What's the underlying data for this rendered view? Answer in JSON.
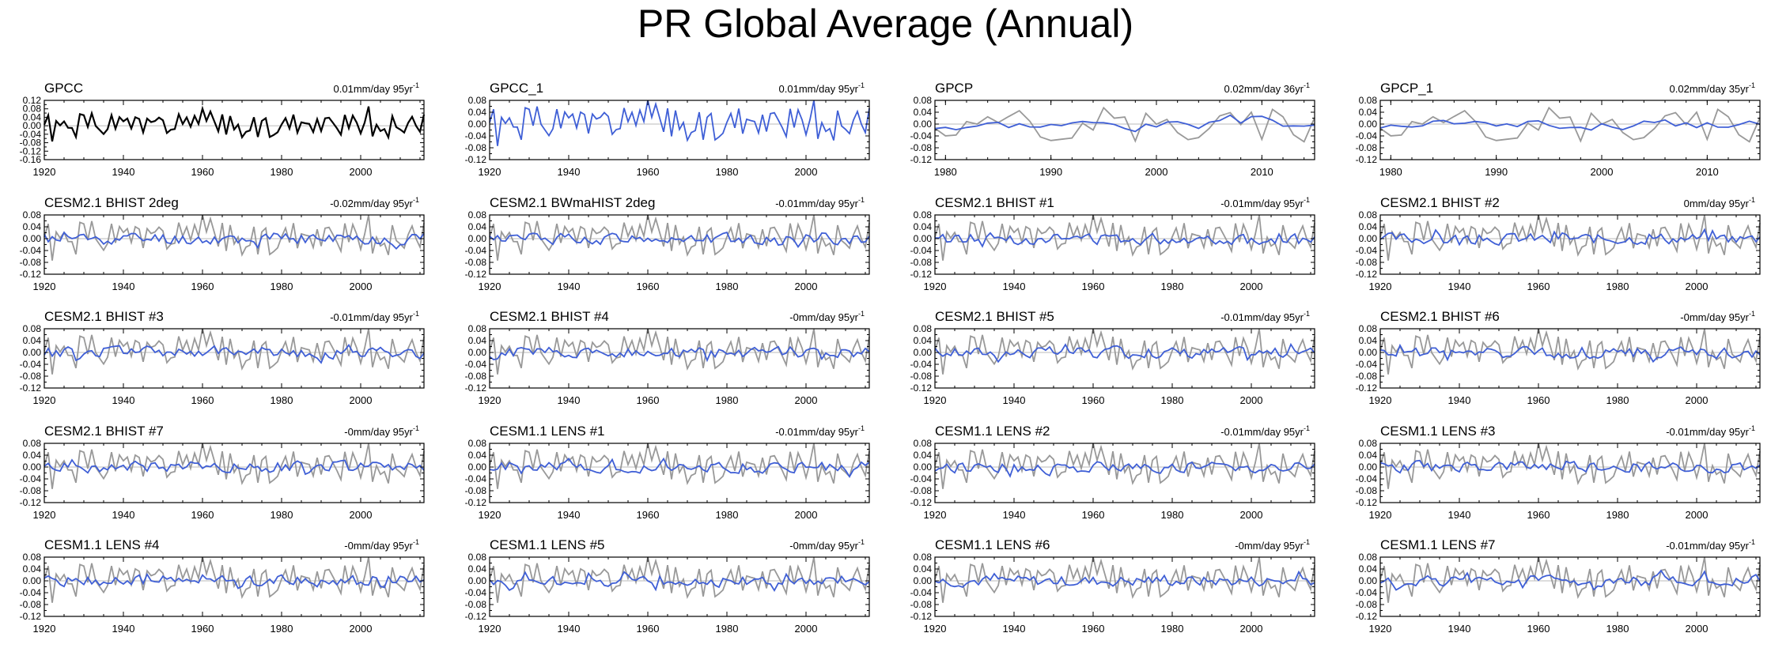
{
  "title": "PR Global Average (Annual)",
  "colors": {
    "reference": "#000000",
    "observed_gray": "#999999",
    "model_blue": "#3F5FD6",
    "zero_line": "#bbbbbb"
  },
  "trend_units": "mm/day",
  "chart_data": [
    {
      "type": "line",
      "title": "GPCC",
      "trend": "0.01mm/day 95yr",
      "trend_exp": "-1",
      "x_range": [
        1920,
        2016
      ],
      "ylim": [
        -0.16,
        0.12
      ],
      "yticks": [
        "0.12",
        "0.08",
        "0.04",
        "0.00",
        "-0.04",
        "-0.08",
        "-0.12",
        "-0.16"
      ],
      "xticks": [
        "1920",
        "1940",
        "1960",
        "1980",
        "2000"
      ],
      "series": [
        {
          "name": "GPCC",
          "color": "black",
          "seed": 1,
          "amp": 0.055,
          "smooth": 0.0
        }
      ]
    },
    {
      "type": "line",
      "title": "GPCC_1",
      "trend": "0.01mm/day 95yr",
      "trend_exp": "-1",
      "x_range": [
        1920,
        2016
      ],
      "ylim": [
        -0.12,
        0.08
      ],
      "yticks": [
        "0.08",
        "0.04",
        "0.00",
        "-0.04",
        "-0.08",
        "-0.12"
      ],
      "xticks": [
        "1920",
        "1940",
        "1960",
        "1980",
        "2000"
      ],
      "series": [
        {
          "name": "GPCC_1",
          "color": "blue",
          "seed": 1,
          "amp": 0.055,
          "smooth": 0.0
        }
      ]
    },
    {
      "type": "line",
      "title": "GPCP",
      "trend": "0.02mm/day 36yr",
      "trend_exp": "-1",
      "x_range": [
        1979,
        2015
      ],
      "ylim": [
        -0.12,
        0.08
      ],
      "yticks": [
        "0.08",
        "0.04",
        "0.00",
        "-0.04",
        "-0.08",
        "-0.12"
      ],
      "xticks": [
        "1980",
        "1990",
        "2000",
        "2010"
      ],
      "series": [
        {
          "name": "obs",
          "color": "gray",
          "seed": 2,
          "amp": 0.06,
          "smooth": 0.0
        },
        {
          "name": "GPCP",
          "color": "blue",
          "seed": 3,
          "amp": 0.02,
          "smooth": 0.5
        }
      ]
    },
    {
      "type": "line",
      "title": "GPCP_1",
      "trend": "0.02mm/day 35yr",
      "trend_exp": "-1",
      "x_range": [
        1979,
        2015
      ],
      "ylim": [
        -0.12,
        0.08
      ],
      "yticks": [
        "0.08",
        "0.04",
        "0.00",
        "-0.04",
        "-0.08",
        "-0.12"
      ],
      "xticks": [
        "1980",
        "1990",
        "2000",
        "2010"
      ],
      "series": [
        {
          "name": "obs",
          "color": "gray",
          "seed": 2,
          "amp": 0.06,
          "smooth": 0.0
        },
        {
          "name": "GPCP_1",
          "color": "blue",
          "seed": 4,
          "amp": 0.02,
          "smooth": 0.5
        }
      ]
    },
    {
      "type": "line",
      "title": "CESM2.1 BHIST 2deg",
      "trend": "-0.02mm/day 95yr",
      "trend_exp": "-1",
      "x_range": [
        1920,
        2016
      ],
      "ylim": [
        -0.12,
        0.08
      ],
      "yticks": [
        "0.08",
        "0.04",
        "0.00",
        "-0.04",
        "-0.08",
        "-0.12"
      ],
      "xticks": [
        "1920",
        "1940",
        "1960",
        "1980",
        "2000"
      ],
      "series": [
        {
          "name": "obs",
          "color": "gray",
          "seed": 1,
          "amp": 0.055,
          "smooth": 0.0
        },
        {
          "name": "model",
          "color": "blue",
          "seed": 11,
          "amp": 0.022,
          "smooth": 0.3
        }
      ]
    },
    {
      "type": "line",
      "title": "CESM2.1 BWmaHIST 2deg",
      "trend": "-0.01mm/day 95yr",
      "trend_exp": "-1",
      "x_range": [
        1920,
        2016
      ],
      "ylim": [
        -0.12,
        0.08
      ],
      "yticks": [
        "0.08",
        "0.04",
        "0.00",
        "-0.04",
        "-0.08",
        "-0.12"
      ],
      "xticks": [
        "1920",
        "1940",
        "1960",
        "1980",
        "2000"
      ],
      "series": [
        {
          "name": "obs",
          "color": "gray",
          "seed": 1,
          "amp": 0.055,
          "smooth": 0.0
        },
        {
          "name": "model",
          "color": "blue",
          "seed": 12,
          "amp": 0.02,
          "smooth": 0.3
        }
      ]
    },
    {
      "type": "line",
      "title": "CESM2.1 BHIST #1",
      "trend": "-0.01mm/day 95yr",
      "trend_exp": "-1",
      "x_range": [
        1920,
        2016
      ],
      "ylim": [
        -0.12,
        0.08
      ],
      "yticks": [
        "0.08",
        "0.04",
        "0.00",
        "-0.04",
        "-0.08",
        "-0.12"
      ],
      "xticks": [
        "1920",
        "1940",
        "1960",
        "1980",
        "2000"
      ],
      "series": [
        {
          "name": "obs",
          "color": "gray",
          "seed": 1,
          "amp": 0.055,
          "smooth": 0.0
        },
        {
          "name": "model",
          "color": "blue",
          "seed": 13,
          "amp": 0.02,
          "smooth": 0.3
        }
      ]
    },
    {
      "type": "line",
      "title": "CESM2.1 BHIST #2",
      "trend": "0mm/day 95yr",
      "trend_exp": "-1",
      "x_range": [
        1920,
        2016
      ],
      "ylim": [
        -0.12,
        0.08
      ],
      "yticks": [
        "0.08",
        "0.04",
        "0.00",
        "-0.04",
        "-0.08",
        "-0.12"
      ],
      "xticks": [
        "1920",
        "1940",
        "1960",
        "1980",
        "2000"
      ],
      "series": [
        {
          "name": "obs",
          "color": "gray",
          "seed": 1,
          "amp": 0.055,
          "smooth": 0.0
        },
        {
          "name": "model",
          "color": "blue",
          "seed": 14,
          "amp": 0.02,
          "smooth": 0.3
        }
      ]
    },
    {
      "type": "line",
      "title": "CESM2.1 BHIST #3",
      "trend": "-0.01mm/day 95yr",
      "trend_exp": "-1",
      "x_range": [
        1920,
        2016
      ],
      "ylim": [
        -0.12,
        0.08
      ],
      "yticks": [
        "0.08",
        "0.04",
        "0.00",
        "-0.04",
        "-0.08",
        "-0.12"
      ],
      "xticks": [
        "1920",
        "1940",
        "1960",
        "1980",
        "2000"
      ],
      "series": [
        {
          "name": "obs",
          "color": "gray",
          "seed": 1,
          "amp": 0.055,
          "smooth": 0.0
        },
        {
          "name": "model",
          "color": "blue",
          "seed": 15,
          "amp": 0.02,
          "smooth": 0.3
        }
      ]
    },
    {
      "type": "line",
      "title": "CESM2.1 BHIST #4",
      "trend": "-0mm/day 95yr",
      "trend_exp": "-1",
      "x_range": [
        1920,
        2016
      ],
      "ylim": [
        -0.12,
        0.08
      ],
      "yticks": [
        "0.08",
        "0.04",
        "0.00",
        "-0.04",
        "-0.08",
        "-0.12"
      ],
      "xticks": [
        "1920",
        "1940",
        "1960",
        "1980",
        "2000"
      ],
      "series": [
        {
          "name": "obs",
          "color": "gray",
          "seed": 1,
          "amp": 0.055,
          "smooth": 0.0
        },
        {
          "name": "model",
          "color": "blue",
          "seed": 16,
          "amp": 0.02,
          "smooth": 0.3
        }
      ]
    },
    {
      "type": "line",
      "title": "CESM2.1 BHIST #5",
      "trend": "-0.01mm/day 95yr",
      "trend_exp": "-1",
      "x_range": [
        1920,
        2016
      ],
      "ylim": [
        -0.12,
        0.08
      ],
      "yticks": [
        "0.08",
        "0.04",
        "0.00",
        "-0.04",
        "-0.08",
        "-0.12"
      ],
      "xticks": [
        "1920",
        "1940",
        "1960",
        "1980",
        "2000"
      ],
      "series": [
        {
          "name": "obs",
          "color": "gray",
          "seed": 1,
          "amp": 0.055,
          "smooth": 0.0
        },
        {
          "name": "model",
          "color": "blue",
          "seed": 17,
          "amp": 0.02,
          "smooth": 0.3
        }
      ]
    },
    {
      "type": "line",
      "title": "CESM2.1 BHIST #6",
      "trend": "-0mm/day 95yr",
      "trend_exp": "-1",
      "x_range": [
        1920,
        2016
      ],
      "ylim": [
        -0.12,
        0.08
      ],
      "yticks": [
        "0.08",
        "0.04",
        "0.00",
        "-0.04",
        "-0.08",
        "-0.12"
      ],
      "xticks": [
        "1920",
        "1940",
        "1960",
        "1980",
        "2000"
      ],
      "series": [
        {
          "name": "obs",
          "color": "gray",
          "seed": 1,
          "amp": 0.055,
          "smooth": 0.0
        },
        {
          "name": "model",
          "color": "blue",
          "seed": 18,
          "amp": 0.02,
          "smooth": 0.3
        }
      ]
    },
    {
      "type": "line",
      "title": "CESM2.1 BHIST #7",
      "trend": "-0mm/day 95yr",
      "trend_exp": "-1",
      "x_range": [
        1920,
        2016
      ],
      "ylim": [
        -0.12,
        0.08
      ],
      "yticks": [
        "0.08",
        "0.04",
        "0.00",
        "-0.04",
        "-0.08",
        "-0.12"
      ],
      "xticks": [
        "1920",
        "1940",
        "1960",
        "1980",
        "2000"
      ],
      "series": [
        {
          "name": "obs",
          "color": "gray",
          "seed": 1,
          "amp": 0.055,
          "smooth": 0.0
        },
        {
          "name": "model",
          "color": "blue",
          "seed": 19,
          "amp": 0.02,
          "smooth": 0.3
        }
      ]
    },
    {
      "type": "line",
      "title": "CESM1.1 LENS #1",
      "trend": "-0.01mm/day 95yr",
      "trend_exp": "-1",
      "x_range": [
        1920,
        2016
      ],
      "ylim": [
        -0.12,
        0.08
      ],
      "yticks": [
        "0.08",
        "0.04",
        "0.00",
        "-0.04",
        "-0.08",
        "-0.12"
      ],
      "xticks": [
        "1920",
        "1940",
        "1960",
        "1980",
        "2000"
      ],
      "series": [
        {
          "name": "obs",
          "color": "gray",
          "seed": 1,
          "amp": 0.055,
          "smooth": 0.0
        },
        {
          "name": "model",
          "color": "blue",
          "seed": 21,
          "amp": 0.02,
          "smooth": 0.3
        }
      ]
    },
    {
      "type": "line",
      "title": "CESM1.1 LENS #2",
      "trend": "-0.01mm/day 95yr",
      "trend_exp": "-1",
      "x_range": [
        1920,
        2016
      ],
      "ylim": [
        -0.12,
        0.08
      ],
      "yticks": [
        "0.08",
        "0.04",
        "0.00",
        "-0.04",
        "-0.08",
        "-0.12"
      ],
      "xticks": [
        "1920",
        "1940",
        "1960",
        "1980",
        "2000"
      ],
      "series": [
        {
          "name": "obs",
          "color": "gray",
          "seed": 1,
          "amp": 0.055,
          "smooth": 0.0
        },
        {
          "name": "model",
          "color": "blue",
          "seed": 22,
          "amp": 0.02,
          "smooth": 0.3
        }
      ]
    },
    {
      "type": "line",
      "title": "CESM1.1 LENS #3",
      "trend": "-0.01mm/day 95yr",
      "trend_exp": "-1",
      "x_range": [
        1920,
        2016
      ],
      "ylim": [
        -0.12,
        0.08
      ],
      "yticks": [
        "0.08",
        "0.04",
        "0.00",
        "-0.04",
        "-0.08",
        "-0.12"
      ],
      "xticks": [
        "1920",
        "1940",
        "1960",
        "1980",
        "2000"
      ],
      "series": [
        {
          "name": "obs",
          "color": "gray",
          "seed": 1,
          "amp": 0.055,
          "smooth": 0.0
        },
        {
          "name": "model",
          "color": "blue",
          "seed": 23,
          "amp": 0.02,
          "smooth": 0.3
        }
      ]
    },
    {
      "type": "line",
      "title": "CESM1.1 LENS #4",
      "trend": "-0mm/day 95yr",
      "trend_exp": "-1",
      "x_range": [
        1920,
        2016
      ],
      "ylim": [
        -0.12,
        0.08
      ],
      "yticks": [
        "0.08",
        "0.04",
        "0.00",
        "-0.04",
        "-0.08",
        "-0.12"
      ],
      "xticks": [
        "1920",
        "1940",
        "1960",
        "1980",
        "2000"
      ],
      "series": [
        {
          "name": "obs",
          "color": "gray",
          "seed": 1,
          "amp": 0.055,
          "smooth": 0.0
        },
        {
          "name": "model",
          "color": "blue",
          "seed": 24,
          "amp": 0.02,
          "smooth": 0.3
        }
      ]
    },
    {
      "type": "line",
      "title": "CESM1.1 LENS #5",
      "trend": "-0mm/day 95yr",
      "trend_exp": "-1",
      "x_range": [
        1920,
        2016
      ],
      "ylim": [
        -0.12,
        0.08
      ],
      "yticks": [
        "0.08",
        "0.04",
        "0.00",
        "-0.04",
        "-0.08",
        "-0.12"
      ],
      "xticks": [
        "1920",
        "1940",
        "1960",
        "1980",
        "2000"
      ],
      "series": [
        {
          "name": "obs",
          "color": "gray",
          "seed": 1,
          "amp": 0.055,
          "smooth": 0.0
        },
        {
          "name": "model",
          "color": "blue",
          "seed": 25,
          "amp": 0.02,
          "smooth": 0.3
        }
      ]
    },
    {
      "type": "line",
      "title": "CESM1.1 LENS #6",
      "trend": "-0mm/day 95yr",
      "trend_exp": "-1",
      "x_range": [
        1920,
        2016
      ],
      "ylim": [
        -0.12,
        0.08
      ],
      "yticks": [
        "0.08",
        "0.04",
        "0.00",
        "-0.04",
        "-0.08",
        "-0.12"
      ],
      "xticks": [
        "1920",
        "1940",
        "1960",
        "1980",
        "2000"
      ],
      "series": [
        {
          "name": "obs",
          "color": "gray",
          "seed": 1,
          "amp": 0.055,
          "smooth": 0.0
        },
        {
          "name": "model",
          "color": "blue",
          "seed": 26,
          "amp": 0.02,
          "smooth": 0.3
        }
      ]
    },
    {
      "type": "line",
      "title": "CESM1.1 LENS #7",
      "trend": "-0.01mm/day 95yr",
      "trend_exp": "-1",
      "x_range": [
        1920,
        2016
      ],
      "ylim": [
        -0.12,
        0.08
      ],
      "yticks": [
        "0.08",
        "0.04",
        "0.00",
        "-0.04",
        "-0.08",
        "-0.12"
      ],
      "xticks": [
        "1920",
        "1940",
        "1960",
        "1980",
        "2000"
      ],
      "series": [
        {
          "name": "obs",
          "color": "gray",
          "seed": 1,
          "amp": 0.055,
          "smooth": 0.0
        },
        {
          "name": "model",
          "color": "blue",
          "seed": 27,
          "amp": 0.02,
          "smooth": 0.3
        }
      ]
    }
  ]
}
